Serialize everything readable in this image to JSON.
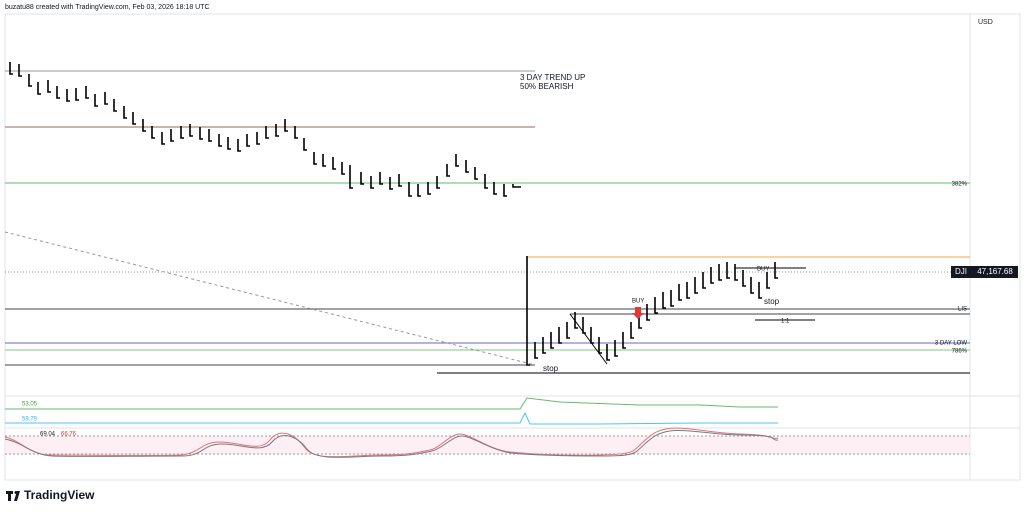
{
  "header": {
    "attribution": "buzatu88 created with TradingView.com, Feb 03, 2026 18:18 UTC",
    "currency": "USD"
  },
  "annotations": {
    "trend": "3 DAY TREND UP",
    "bearish": "50% BEARISH",
    "buy_1": "BUY",
    "buy_2": "BUY",
    "stop_1": "stop",
    "stop_2": "stop",
    "ratio": "1:1"
  },
  "levels": {
    "fib_382": "382%",
    "lis": "LIS",
    "three_day_low": "3 DAY LOW",
    "fib_786": "786%"
  },
  "price_tag": {
    "symbol": "DJI",
    "price": "47,167.68"
  },
  "indicators": {
    "line_1": 53.05,
    "line_2": 59.79,
    "osc_1": 69.04,
    "osc_2": 66.76
  },
  "footer": {
    "brand": "TradingView"
  }
}
